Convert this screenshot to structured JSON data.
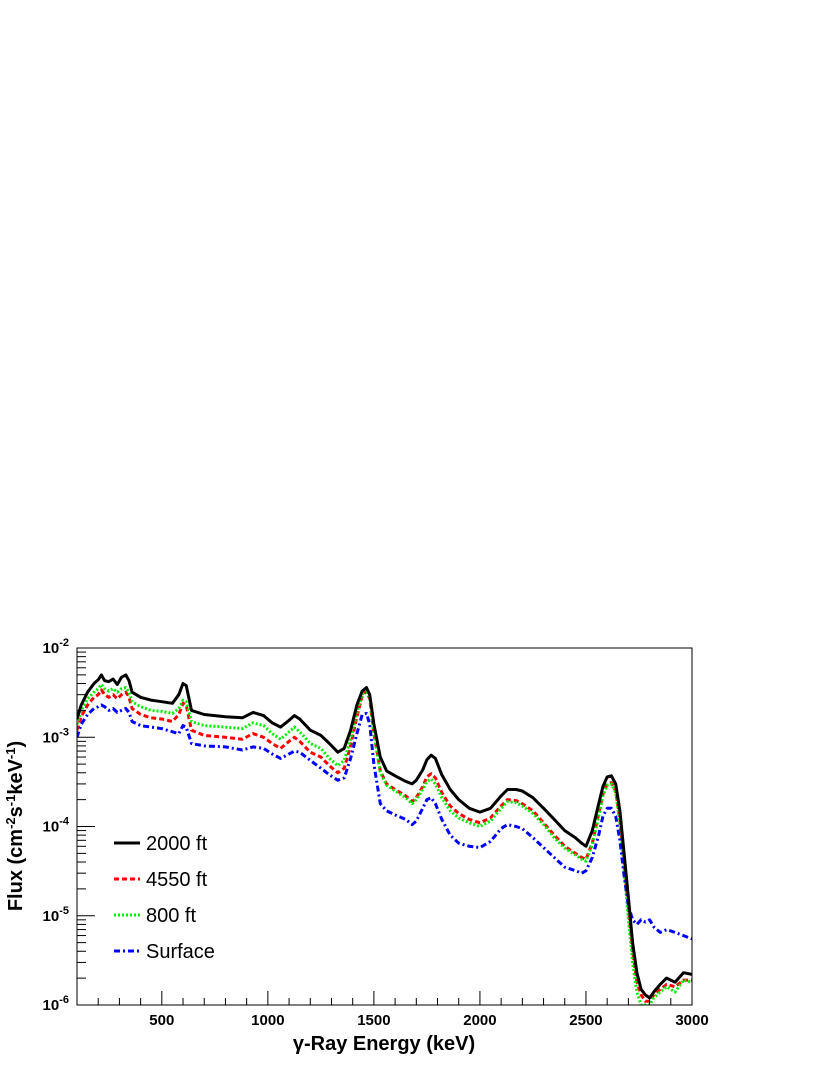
{
  "chart_data": {
    "type": "line",
    "xlabel": "γ-Ray Energy (keV)",
    "ylabel_parts": [
      "Flux (cm",
      "-2",
      "s",
      "-1",
      "keV",
      "-1",
      ")"
    ],
    "xlim": [
      100,
      3000
    ],
    "ylim": [
      1e-06,
      0.01
    ],
    "log_y": true,
    "grid": false,
    "legend_position": "bottom-left",
    "x_ticks": [
      500,
      1000,
      1500,
      2000,
      2500,
      3000
    ],
    "x_tick_labels": [
      "500",
      "1000",
      "1500",
      "2000",
      "2500",
      "3000"
    ],
    "y_ticks": [
      {
        "value": 1e-06,
        "base": "10",
        "exp": "-6"
      },
      {
        "value": 1e-05,
        "base": "10",
        "exp": "-5"
      },
      {
        "value": 0.0001,
        "base": "10",
        "exp": "-4"
      },
      {
        "value": 0.001,
        "base": "10",
        "exp": "-3"
      },
      {
        "value": 0.01,
        "base": "10",
        "exp": "-2"
      }
    ],
    "series": [
      {
        "name": "2000 ft",
        "color": "#000000",
        "dash": "solid",
        "x": [
          100,
          120,
          150,
          180,
          200,
          215,
          230,
          250,
          270,
          290,
          310,
          330,
          345,
          360,
          400,
          450,
          500,
          550,
          580,
          600,
          615,
          640,
          700,
          800,
          880,
          930,
          980,
          1020,
          1060,
          1100,
          1125,
          1150,
          1200,
          1250,
          1290,
          1330,
          1360,
          1390,
          1420,
          1445,
          1465,
          1480,
          1500,
          1530,
          1560,
          1600,
          1650,
          1680,
          1700,
          1730,
          1750,
          1770,
          1790,
          1820,
          1860,
          1900,
          1950,
          2000,
          2050,
          2100,
          2130,
          2170,
          2200,
          2250,
          2300,
          2350,
          2400,
          2450,
          2480,
          2500,
          2530,
          2560,
          2580,
          2600,
          2620,
          2640,
          2660,
          2680,
          2700,
          2720,
          2740,
          2760,
          2780,
          2800,
          2820,
          2850,
          2880,
          2920,
          2960,
          3000
        ],
        "y": [
          0.0016,
          0.0023,
          0.0032,
          0.004,
          0.0044,
          0.005,
          0.0043,
          0.0042,
          0.0045,
          0.0039,
          0.0047,
          0.005,
          0.0043,
          0.0032,
          0.0028,
          0.0026,
          0.0025,
          0.0024,
          0.003,
          0.004,
          0.0038,
          0.002,
          0.0018,
          0.0017,
          0.00165,
          0.0019,
          0.00175,
          0.00145,
          0.0013,
          0.00155,
          0.00175,
          0.0016,
          0.0012,
          0.00105,
          0.00085,
          0.00068,
          0.00075,
          0.0012,
          0.0023,
          0.0033,
          0.0036,
          0.003,
          0.0014,
          0.0006,
          0.00042,
          0.00037,
          0.00032,
          0.0003,
          0.00033,
          0.00043,
          0.00056,
          0.00063,
          0.00058,
          0.00038,
          0.00026,
          0.0002,
          0.00016,
          0.000145,
          0.00016,
          0.00022,
          0.00026,
          0.00026,
          0.00025,
          0.00021,
          0.00016,
          0.00012,
          9e-05,
          7.5e-05,
          6.5e-05,
          6e-05,
          9e-05,
          0.00018,
          0.00028,
          0.00036,
          0.00037,
          0.0003,
          0.00015,
          5e-05,
          1.6e-05,
          5e-06,
          2.3e-06,
          1.5e-06,
          1.3e-06,
          1.2e-06,
          1.4e-06,
          1.7e-06,
          2e-06,
          1.8e-06,
          2.3e-06,
          2.2e-06
        ]
      },
      {
        "name": "4550 ft",
        "color": "#ff0000",
        "dash": "dashed",
        "x": [
          100,
          120,
          150,
          180,
          200,
          215,
          230,
          250,
          270,
          290,
          310,
          330,
          345,
          360,
          400,
          450,
          500,
          550,
          580,
          600,
          615,
          640,
          700,
          800,
          880,
          930,
          980,
          1020,
          1060,
          1100,
          1125,
          1150,
          1200,
          1250,
          1290,
          1330,
          1360,
          1390,
          1420,
          1445,
          1465,
          1480,
          1500,
          1530,
          1560,
          1600,
          1650,
          1680,
          1700,
          1730,
          1750,
          1770,
          1790,
          1820,
          1860,
          1900,
          1950,
          2000,
          2050,
          2100,
          2130,
          2170,
          2200,
          2250,
          2300,
          2350,
          2400,
          2450,
          2480,
          2500,
          2530,
          2560,
          2580,
          2600,
          2620,
          2640,
          2660,
          2680,
          2700,
          2720,
          2740,
          2760,
          2780,
          2800,
          2820,
          2850,
          2880,
          2920,
          2960,
          3000
        ],
        "y": [
          0.0012,
          0.0017,
          0.0023,
          0.0028,
          0.003,
          0.0034,
          0.003,
          0.0028,
          0.003,
          0.0027,
          0.003,
          0.0032,
          0.0028,
          0.0021,
          0.0018,
          0.00165,
          0.0016,
          0.0015,
          0.0018,
          0.0024,
          0.0023,
          0.0012,
          0.00105,
          0.001,
          0.00095,
          0.0011,
          0.001,
          0.00085,
          0.00075,
          0.0009,
          0.001,
          0.0009,
          0.00068,
          0.0006,
          0.00048,
          0.0004,
          0.00045,
          0.0008,
          0.0017,
          0.0029,
          0.0033,
          0.0027,
          0.0011,
          0.00042,
          0.0003,
          0.00026,
          0.00022,
          0.00019,
          0.00021,
          0.00028,
          0.00036,
          0.00039,
          0.00035,
          0.00024,
          0.00017,
          0.00014,
          0.00012,
          0.00011,
          0.000125,
          0.00017,
          0.0002,
          0.000195,
          0.00018,
          0.00015,
          0.00011,
          8e-05,
          6e-05,
          5e-05,
          4.5e-05,
          4.3e-05,
          6.5e-05,
          0.00014,
          0.00023,
          0.0003,
          0.00031,
          0.00025,
          0.00012,
          3.8e-05,
          1.2e-05,
          4e-06,
          1.8e-06,
          1.3e-06,
          1.1e-06,
          1.1e-06,
          1.3e-06,
          1.5e-06,
          1.7e-06,
          1.6e-06,
          1.9e-06,
          1.9e-06
        ]
      },
      {
        "name": "800 ft",
        "color": "#00ee00",
        "dash": "dotted",
        "x": [
          100,
          120,
          150,
          180,
          200,
          215,
          230,
          250,
          270,
          290,
          310,
          330,
          345,
          360,
          400,
          450,
          500,
          550,
          580,
          600,
          615,
          640,
          700,
          800,
          880,
          930,
          980,
          1020,
          1060,
          1100,
          1125,
          1150,
          1200,
          1250,
          1290,
          1330,
          1360,
          1390,
          1420,
          1445,
          1465,
          1480,
          1500,
          1530,
          1560,
          1600,
          1650,
          1680,
          1700,
          1730,
          1750,
          1770,
          1790,
          1820,
          1860,
          1900,
          1950,
          2000,
          2050,
          2100,
          2130,
          2170,
          2200,
          2250,
          2300,
          2350,
          2400,
          2450,
          2480,
          2500,
          2530,
          2560,
          2580,
          2600,
          2620,
          2640,
          2660,
          2680,
          2700,
          2720,
          2740,
          2760,
          2780,
          2800,
          2820,
          2850,
          2880,
          2920,
          2960,
          3000
        ],
        "y": [
          0.0014,
          0.002,
          0.0027,
          0.0032,
          0.0035,
          0.0039,
          0.0035,
          0.0033,
          0.0035,
          0.0032,
          0.0035,
          0.0036,
          0.0032,
          0.0025,
          0.0022,
          0.002,
          0.00195,
          0.00185,
          0.0021,
          0.0026,
          0.0025,
          0.0015,
          0.00135,
          0.0013,
          0.00125,
          0.00145,
          0.00135,
          0.0011,
          0.00095,
          0.00115,
          0.0013,
          0.00115,
          0.00085,
          0.00075,
          0.00058,
          0.00048,
          0.00055,
          0.00095,
          0.0019,
          0.003,
          0.0034,
          0.0028,
          0.0011,
          0.0004,
          0.00029,
          0.00025,
          0.00021,
          0.00018,
          0.0002,
          0.00026,
          0.00032,
          0.00034,
          0.0003,
          0.00021,
          0.00015,
          0.000125,
          0.00011,
          0.0001,
          0.000115,
          0.00016,
          0.00019,
          0.000185,
          0.00017,
          0.00014,
          0.000105,
          7.5e-05,
          5.7e-05,
          4.8e-05,
          4.3e-05,
          4.1e-05,
          6.2e-05,
          0.00013,
          0.00022,
          0.00029,
          0.0003,
          0.00024,
          0.00011,
          3.3e-05,
          9e-06,
          3e-06,
          1.4e-06,
          1e-06,
          1e-06,
          1e-06,
          1.2e-06,
          1.4e-06,
          1.6e-06,
          1.4e-06,
          1.9e-06,
          1.8e-06
        ]
      },
      {
        "name": "Surface",
        "color": "#0000ff",
        "dash": "dashdot",
        "x": [
          100,
          120,
          150,
          180,
          200,
          215,
          230,
          250,
          270,
          290,
          310,
          330,
          345,
          360,
          400,
          450,
          500,
          550,
          580,
          600,
          615,
          640,
          700,
          800,
          880,
          930,
          980,
          1020,
          1060,
          1100,
          1125,
          1150,
          1200,
          1250,
          1290,
          1330,
          1360,
          1390,
          1420,
          1445,
          1465,
          1480,
          1500,
          1530,
          1560,
          1600,
          1650,
          1680,
          1700,
          1730,
          1750,
          1770,
          1790,
          1820,
          1860,
          1900,
          1950,
          2000,
          2050,
          2100,
          2130,
          2170,
          2200,
          2250,
          2300,
          2350,
          2400,
          2450,
          2480,
          2500,
          2530,
          2560,
          2580,
          2600,
          2620,
          2640,
          2660,
          2680,
          2700,
          2720,
          2740,
          2760,
          2780,
          2800,
          2820,
          2850,
          2880,
          2920,
          2960,
          3000
        ],
        "y": [
          0.001,
          0.0014,
          0.0018,
          0.0021,
          0.0022,
          0.0023,
          0.0022,
          0.002,
          0.0021,
          0.0019,
          0.002,
          0.0021,
          0.0019,
          0.0015,
          0.00135,
          0.0013,
          0.00125,
          0.00115,
          0.0011,
          0.00135,
          0.0013,
          0.00085,
          0.0008,
          0.00078,
          0.00072,
          0.00078,
          0.00075,
          0.00065,
          0.00058,
          0.00065,
          0.0007,
          0.00068,
          0.00055,
          0.00045,
          0.00038,
          0.00033,
          0.00035,
          0.00058,
          0.0011,
          0.0018,
          0.00185,
          0.0014,
          0.0005,
          0.00018,
          0.00015,
          0.000135,
          0.00012,
          0.000105,
          0.000115,
          0.00016,
          0.0002,
          0.00021,
          0.00018,
          0.00012,
          8e-05,
          6.5e-05,
          6e-05,
          5.8e-05,
          6.8e-05,
          9.5e-05,
          0.000105,
          0.0001,
          9.5e-05,
          7.5e-05,
          5.8e-05,
          4.5e-05,
          3.5e-05,
          3.2e-05,
          3e-05,
          3.2e-05,
          4.5e-05,
          8e-05,
          0.00013,
          0.00016,
          0.00016,
          0.00013,
          7e-05,
          2.8e-05,
          1.3e-05,
          9e-06,
          8e-06,
          9e-06,
          8.5e-06,
          9e-06,
          7.5e-06,
          6.5e-06,
          7e-06,
          6.5e-06,
          6e-06,
          5.5e-06
        ]
      }
    ]
  }
}
